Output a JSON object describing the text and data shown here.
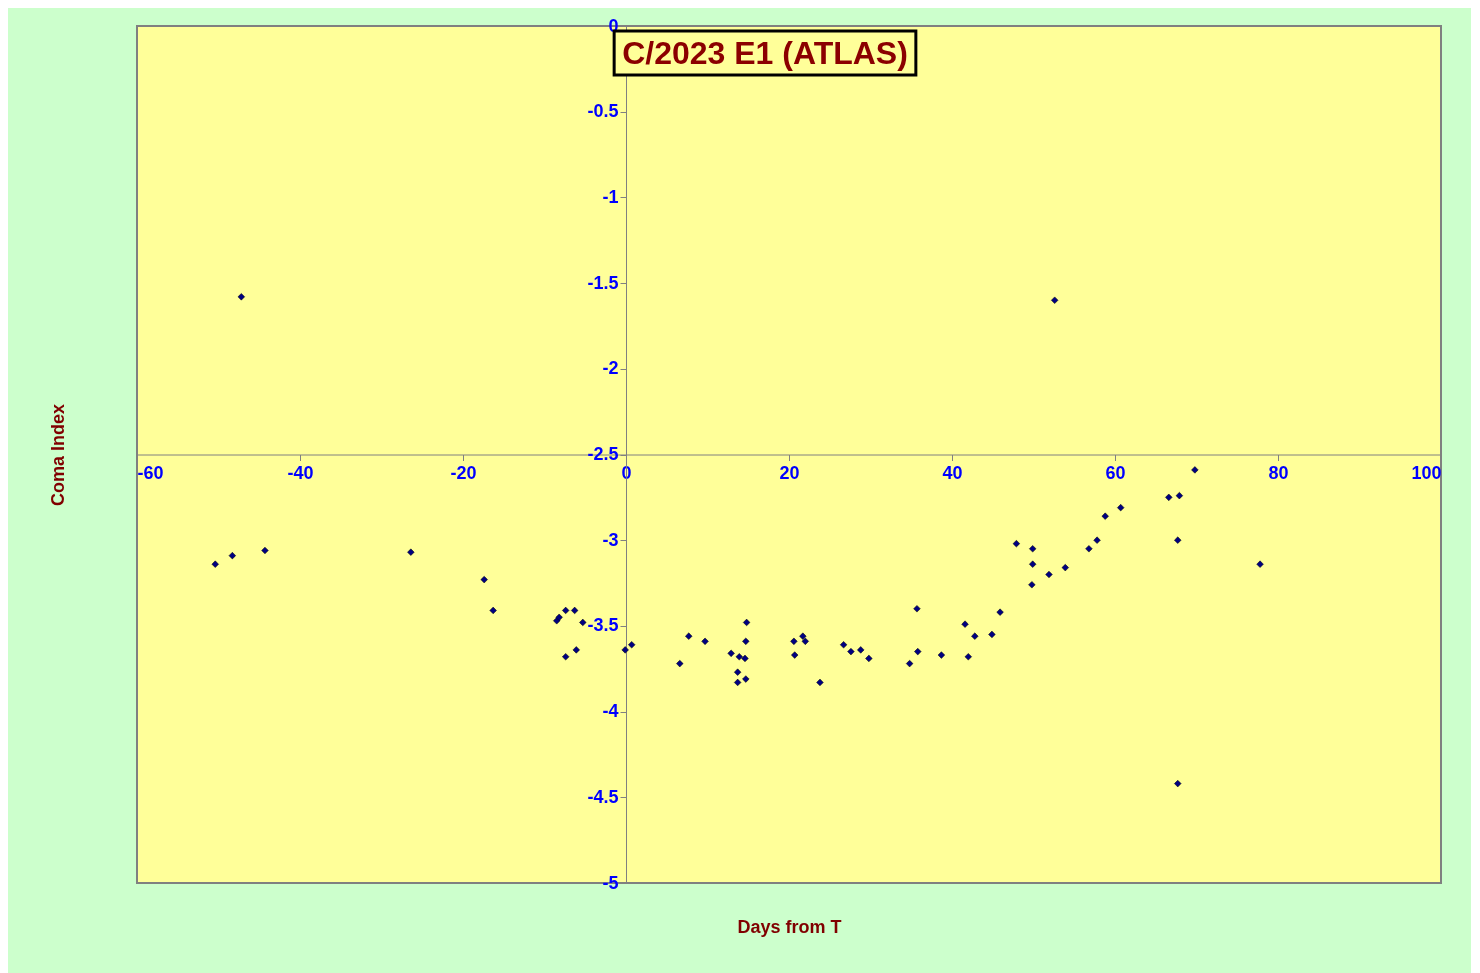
{
  "chart_data": {
    "type": "scatter",
    "title": "C/2023 E1 (ATLAS)",
    "xlabel": "Days from T",
    "ylabel": "Coma Index",
    "marker": "diamond",
    "grid": false,
    "legend": false,
    "xlim": [
      -60,
      100
    ],
    "xticks": [
      -60,
      -40,
      -20,
      0,
      20,
      40,
      60,
      80,
      100
    ],
    "ylim": [
      -5,
      0
    ],
    "yticks": [
      -5,
      -4.5,
      -4,
      -3.5,
      -3,
      -2.5,
      -2,
      -1.5,
      -1,
      -0.5,
      0
    ],
    "series": [
      {
        "color": "#000080",
        "x": [
          -47.2,
          52.6,
          -50.4,
          -48.3,
          -44.3,
          -26.4,
          -17.4,
          -16.3,
          -8.5,
          -8.2,
          -7.4,
          -6.3,
          -5.3,
          -7.4,
          -6.1,
          -0.1,
          0.7,
          6.6,
          7.7,
          9.7,
          12.9,
          13.9,
          13.7,
          13.7,
          14.6,
          14.7,
          14.8,
          14.7,
          20.6,
          20.7,
          21.7,
          22.0,
          23.8,
          26.7,
          27.6,
          28.8,
          29.8,
          34.8,
          35.7,
          35.8,
          38.7,
          41.6,
          42.0,
          42.8,
          44.9,
          45.9,
          47.9,
          49.9,
          49.9,
          49.8,
          51.9,
          53.9,
          56.8,
          57.8,
          58.8,
          60.7,
          66.6,
          67.9,
          67.7,
          67.7,
          69.8,
          77.8
        ],
        "values": [
          -1.58,
          -1.6,
          -3.14,
          -3.09,
          -3.06,
          -3.07,
          -3.23,
          -3.41,
          -3.47,
          -3.45,
          -3.41,
          -3.41,
          -3.48,
          -3.68,
          -3.64,
          -3.64,
          -3.61,
          -3.72,
          -3.56,
          -3.59,
          -3.66,
          -3.68,
          -3.77,
          -3.83,
          -3.69,
          -3.59,
          -3.48,
          -3.81,
          -3.59,
          -3.67,
          -3.56,
          -3.59,
          -3.83,
          -3.61,
          -3.65,
          -3.64,
          -3.69,
          -3.72,
          -3.4,
          -3.65,
          -3.67,
          -3.49,
          -3.68,
          -3.56,
          -3.55,
          -3.42,
          -3.02,
          -3.05,
          -3.14,
          -3.26,
          -3.2,
          -3.16,
          -3.05,
          -3,
          -2.86,
          -2.81,
          -2.75,
          -2.74,
          -3,
          -4.42,
          -2.59,
          -3.14
        ]
      }
    ]
  }
}
